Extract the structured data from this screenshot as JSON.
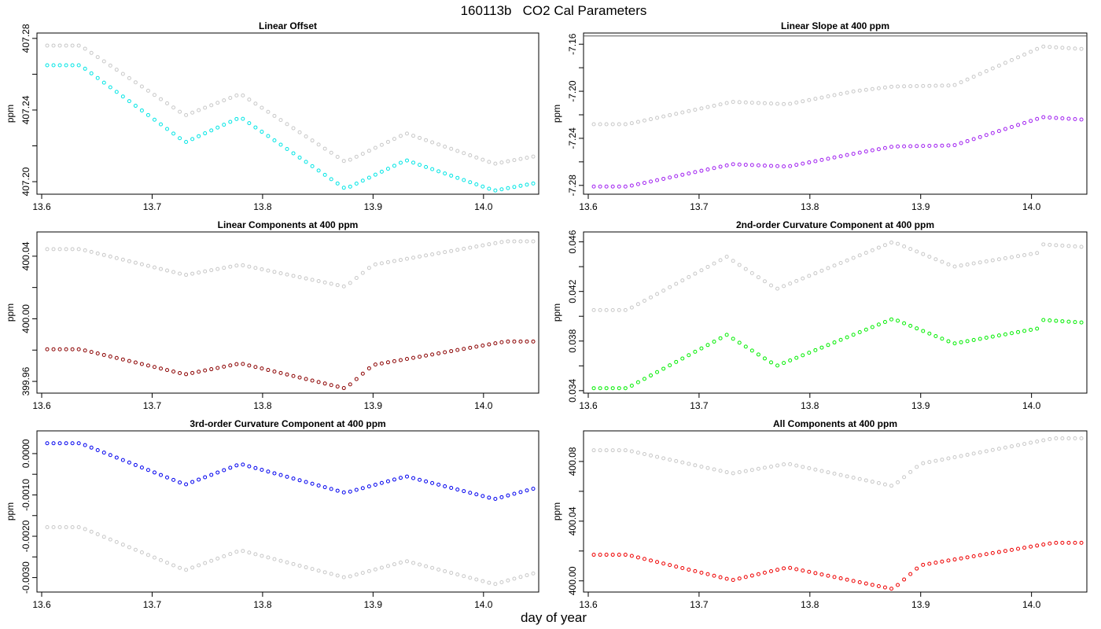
{
  "page": {
    "title": "160113b   CO2 Cal Parameters",
    "xlabel": "day of year"
  },
  "colors": {
    "reference": "#c8c8c8",
    "frame": "#000000"
  },
  "chart_data": [
    {
      "type": "scatter",
      "title": "Linear Offset",
      "ylabel": "ppm",
      "xlim": [
        13.6,
        14.04
      ],
      "ylim": [
        407.193,
        407.283
      ],
      "xticks": [
        13.6,
        13.7,
        13.8,
        13.9,
        14.0
      ],
      "xtick_labels": [
        "13.6",
        "13.7",
        "13.8",
        "13.9",
        "14.0"
      ],
      "yticks": [
        407.2,
        407.24,
        407.28
      ],
      "ytick_labels": [
        "407.20",
        "407.24",
        "407.28"
      ],
      "yminor": [
        407.22,
        407.26
      ],
      "hline": null,
      "series": [
        {
          "color": "#c8c8c8",
          "knots": [
            [
              13.605,
              407.276
            ],
            [
              13.635,
              407.276
            ],
            [
              13.73,
              407.237
            ],
            [
              13.78,
              407.249
            ],
            [
              13.875,
              407.211
            ],
            [
              13.93,
              407.227
            ],
            [
              14.01,
              407.21
            ],
            [
              14.045,
              407.214
            ]
          ]
        },
        {
          "color": "#00e5e5",
          "knots": [
            [
              13.605,
              407.265
            ],
            [
              13.635,
              407.265
            ],
            [
              13.73,
              407.222
            ],
            [
              13.78,
              407.236
            ],
            [
              13.875,
              407.196
            ],
            [
              13.93,
              407.212
            ],
            [
              14.01,
              407.195
            ],
            [
              14.045,
              407.199
            ]
          ]
        }
      ]
    },
    {
      "type": "scatter",
      "title": "Linear Slope at 400 ppm",
      "ylabel": "ppm",
      "xlim": [
        13.6,
        14.04
      ],
      "ylim": [
        -7.2875,
        -7.1505
      ],
      "xticks": [
        13.6,
        13.7,
        13.8,
        13.9,
        14.0
      ],
      "xtick_labels": [
        "13.6",
        "13.7",
        "13.8",
        "13.9",
        "14.0"
      ],
      "yticks": [
        -7.28,
        -7.24,
        -7.2,
        -7.16
      ],
      "ytick_labels": [
        "-7.28",
        "-7.24",
        "-7.20",
        "-7.16"
      ],
      "yminor": [
        -7.26,
        -7.22,
        -7.18
      ],
      "hline": -7.153,
      "series": [
        {
          "color": "#c8c8c8",
          "knots": [
            [
              13.605,
              -7.228
            ],
            [
              13.635,
              -7.228
            ],
            [
              13.73,
              -7.209
            ],
            [
              13.78,
              -7.211
            ],
            [
              13.84,
              -7.2
            ],
            [
              13.875,
              -7.196
            ],
            [
              13.93,
              -7.195
            ],
            [
              14.01,
              -7.162
            ],
            [
              14.045,
              -7.164
            ]
          ]
        },
        {
          "color": "#a020f0",
          "knots": [
            [
              13.605,
              -7.281
            ],
            [
              13.635,
              -7.281
            ],
            [
              13.73,
              -7.262
            ],
            [
              13.78,
              -7.264
            ],
            [
              13.84,
              -7.253
            ],
            [
              13.875,
              -7.247
            ],
            [
              13.93,
              -7.246
            ],
            [
              14.01,
              -7.222
            ],
            [
              14.045,
              -7.224
            ]
          ]
        }
      ]
    },
    {
      "type": "scatter",
      "title": "Linear Components at 400 ppm",
      "ylabel": "ppm",
      "xlim": [
        13.6,
        14.04
      ],
      "ylim": [
        399.9525,
        400.0555
      ],
      "xticks": [
        13.6,
        13.7,
        13.8,
        13.9,
        14.0
      ],
      "xtick_labels": [
        "13.6",
        "13.7",
        "13.8",
        "13.9",
        "14.0"
      ],
      "yticks": [
        399.96,
        400.0,
        400.04
      ],
      "ytick_labels": [
        "399.96",
        "400.00",
        "400.04"
      ],
      "yminor": [
        399.98,
        400.02
      ],
      "hline": null,
      "series": [
        {
          "color": "#c8c8c8",
          "knots": [
            [
              13.605,
              400.0445
            ],
            [
              13.635,
              400.0445
            ],
            [
              13.73,
              400.028
            ],
            [
              13.78,
              400.0345
            ],
            [
              13.875,
              400.0205
            ],
            [
              13.9,
              400.0345
            ],
            [
              14.02,
              400.0495
            ],
            [
              14.045,
              400.0495
            ]
          ]
        },
        {
          "color": "#8b0000",
          "knots": [
            [
              13.605,
              399.9805
            ],
            [
              13.635,
              399.9805
            ],
            [
              13.73,
              399.9645
            ],
            [
              13.78,
              399.9715
            ],
            [
              13.875,
              399.9555
            ],
            [
              13.9,
              399.9705
            ],
            [
              14.02,
              399.9855
            ],
            [
              14.045,
              399.9855
            ]
          ]
        }
      ]
    },
    {
      "type": "scatter",
      "title": "2nd-order Curvature Component at 400 ppm",
      "ylabel": "ppm",
      "xlim": [
        13.6,
        14.04
      ],
      "ylim": [
        0.0338,
        0.0468
      ],
      "xticks": [
        13.6,
        13.7,
        13.8,
        13.9,
        14.0
      ],
      "xtick_labels": [
        "13.6",
        "13.7",
        "13.8",
        "13.9",
        "14.0"
      ],
      "yticks": [
        0.034,
        0.038,
        0.042,
        0.046
      ],
      "ytick_labels": [
        "0.034",
        "0.038",
        "0.042",
        "0.046"
      ],
      "yminor": [
        0.036,
        0.04,
        0.044
      ],
      "hline": null,
      "series": [
        {
          "color": "#c8c8c8",
          "knots": [
            [
              13.605,
              0.0405
            ],
            [
              13.635,
              0.0405
            ],
            [
              13.725,
              0.0448
            ],
            [
              13.77,
              0.0422
            ],
            [
              13.875,
              0.046
            ],
            [
              13.93,
              0.044
            ],
            [
              14.005,
              0.0451
            ],
            [
              14.01,
              0.0458
            ],
            [
              14.045,
              0.0456
            ]
          ]
        },
        {
          "color": "#00ee00",
          "knots": [
            [
              13.605,
              0.0342
            ],
            [
              13.635,
              0.0342
            ],
            [
              13.725,
              0.0385
            ],
            [
              13.77,
              0.036
            ],
            [
              13.875,
              0.0398
            ],
            [
              13.93,
              0.0378
            ],
            [
              14.005,
              0.039
            ],
            [
              14.01,
              0.0397
            ],
            [
              14.045,
              0.0395
            ]
          ]
        }
      ]
    },
    {
      "type": "scatter",
      "title": "3rd-order Curvature Component at 400 ppm",
      "ylabel": "ppm",
      "xlim": [
        13.6,
        14.04
      ],
      "ylim": [
        -0.00335,
        0.00055
      ],
      "xticks": [
        13.6,
        13.7,
        13.8,
        13.9,
        14.0
      ],
      "xtick_labels": [
        "13.6",
        "13.7",
        "13.8",
        "13.9",
        "14.0"
      ],
      "yticks": [
        -0.003,
        -0.002,
        -0.001,
        0.0
      ],
      "ytick_labels": [
        "-0.0030",
        "-0.0020",
        "-0.0010",
        "0.0000"
      ],
      "yminor": [
        -0.0025,
        -0.0015,
        -0.0005
      ],
      "hline": null,
      "series": [
        {
          "color": "#c8c8c8",
          "knots": [
            [
              13.605,
              -0.00178
            ],
            [
              13.635,
              -0.00178
            ],
            [
              13.73,
              -0.00282
            ],
            [
              13.78,
              -0.00234
            ],
            [
              13.875,
              -0.003
            ],
            [
              13.93,
              -0.0026
            ],
            [
              14.01,
              -0.00316
            ],
            [
              14.045,
              -0.0029
            ]
          ]
        },
        {
          "color": "#0000ee",
          "knots": [
            [
              13.605,
              0.00025
            ],
            [
              13.635,
              0.00025
            ],
            [
              13.73,
              -0.00075
            ],
            [
              13.78,
              -0.00025
            ],
            [
              13.875,
              -0.00095
            ],
            [
              13.93,
              -0.00055
            ],
            [
              14.01,
              -0.0011
            ],
            [
              14.045,
              -0.00085
            ]
          ]
        }
      ]
    },
    {
      "type": "scatter",
      "title": "All Components at 400 ppm",
      "ylabel": "ppm",
      "xlim": [
        13.6,
        14.04
      ],
      "ylim": [
        399.9925,
        400.1005
      ],
      "xticks": [
        13.6,
        13.7,
        13.8,
        13.9,
        14.0
      ],
      "xtick_labels": [
        "13.6",
        "13.7",
        "13.8",
        "13.9",
        "14.0"
      ],
      "yticks": [
        400.0,
        400.04,
        400.08
      ],
      "ytick_labels": [
        "400.00",
        "400.04",
        "400.08"
      ],
      "yminor": [
        400.02,
        400.06
      ],
      "hline": null,
      "series": [
        {
          "color": "#c8c8c8",
          "knots": [
            [
              13.605,
              400.0875
            ],
            [
              13.635,
              400.0875
            ],
            [
              13.73,
              400.072
            ],
            [
              13.78,
              400.0785
            ],
            [
              13.875,
              400.0635
            ],
            [
              13.9,
              400.0785
            ],
            [
              14.02,
              400.0955
            ],
            [
              14.045,
              400.0955
            ]
          ]
        },
        {
          "color": "#ee0000",
          "knots": [
            [
              13.605,
              400.0175
            ],
            [
              13.635,
              400.0175
            ],
            [
              13.73,
              400.0005
            ],
            [
              13.78,
              400.009
            ],
            [
              13.875,
              399.9945
            ],
            [
              13.9,
              400.0105
            ],
            [
              14.02,
              400.0255
            ],
            [
              14.045,
              400.0255
            ]
          ]
        }
      ]
    }
  ]
}
